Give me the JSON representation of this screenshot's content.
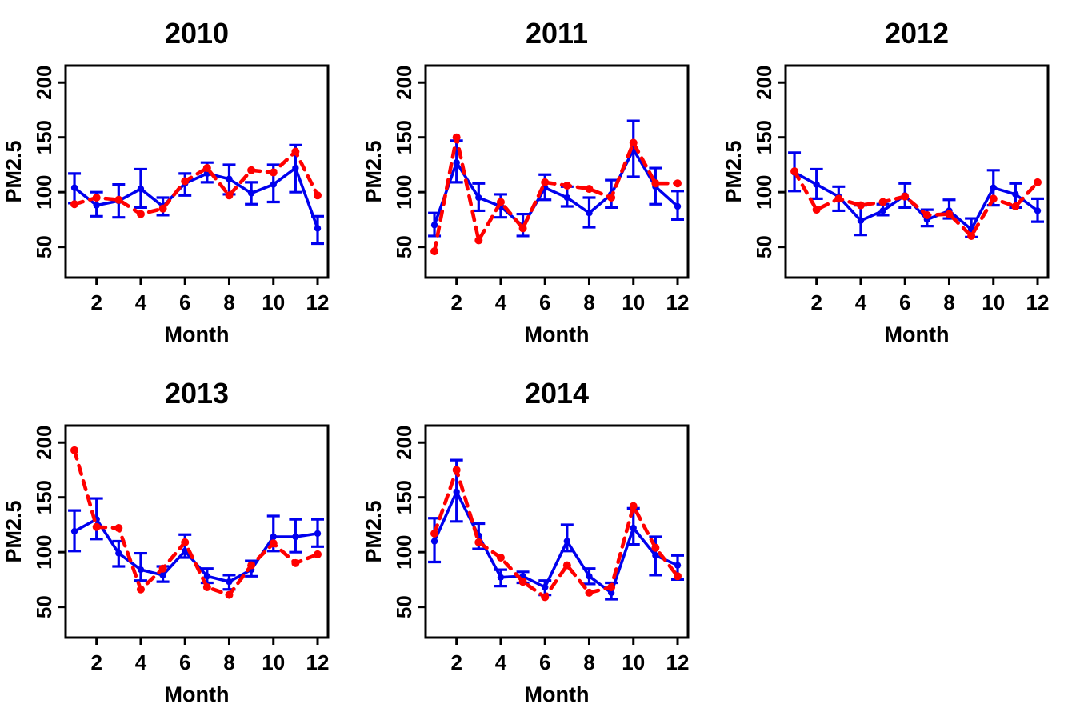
{
  "figure": {
    "description_colors": {
      "blue_series": "#0000EE",
      "red_series": "#FF0000",
      "axis": "#000000",
      "background": "#FFFFFF"
    }
  },
  "chart_data": [
    {
      "type": "line",
      "title": "2010",
      "xlabel": "Month",
      "ylabel": "PM2.5",
      "x": [
        1,
        2,
        3,
        4,
        5,
        6,
        7,
        8,
        9,
        10,
        11,
        12
      ],
      "xticks": [
        2,
        4,
        6,
        8,
        10,
        12
      ],
      "yticks": [
        50,
        100,
        150,
        200
      ],
      "xlim": [
        0.6,
        12.47
      ],
      "ylim": [
        22,
        215.5
      ],
      "grid": false,
      "legend": "none",
      "series": [
        {
          "name": "solid_blue_with_errorbars",
          "color": "#0000EE",
          "line": "solid",
          "values": [
            104,
            88,
            92,
            103,
            87,
            108,
            117,
            112,
            99,
            107,
            122,
            67
          ],
          "err_high": [
            117,
            100,
            107,
            121,
            95,
            117,
            127,
            125,
            109,
            125,
            143,
            78
          ],
          "err_low": [
            90,
            78,
            77,
            86,
            79,
            97,
            109,
            98,
            89,
            91,
            100,
            53
          ]
        },
        {
          "name": "dashed_red",
          "color": "#FF0000",
          "line": "dashed",
          "values": [
            89,
            95,
            93,
            80,
            85,
            110,
            122,
            97,
            120,
            118,
            137,
            97
          ]
        }
      ]
    },
    {
      "type": "line",
      "title": "2011",
      "xlabel": "Month",
      "ylabel": "PM2.5",
      "x": [
        1,
        2,
        3,
        4,
        5,
        6,
        7,
        8,
        9,
        10,
        11,
        12
      ],
      "xticks": [
        2,
        4,
        6,
        8,
        10,
        12
      ],
      "yticks": [
        50,
        100,
        150,
        200
      ],
      "xlim": [
        0.6,
        12.47
      ],
      "ylim": [
        22,
        215.5
      ],
      "grid": false,
      "legend": "none",
      "series": [
        {
          "name": "solid_blue_with_errorbars",
          "color": "#0000EE",
          "line": "solid",
          "values": [
            70,
            127,
            95,
            87,
            69,
            104,
            95,
            81,
            98,
            139,
            105,
            87
          ],
          "err_high": [
            81,
            147,
            108,
            98,
            80,
            116,
            105,
            95,
            111,
            165,
            122,
            101
          ],
          "err_low": [
            60,
            109,
            83,
            77,
            60,
            93,
            87,
            68,
            86,
            114,
            89,
            75
          ]
        },
        {
          "name": "dashed_red",
          "color": "#FF0000",
          "line": "dashed",
          "values": [
            46,
            150,
            56,
            91,
            67,
            109,
            106,
            103,
            95,
            145,
            108,
            108
          ]
        }
      ]
    },
    {
      "type": "line",
      "title": "2012",
      "xlabel": "Month",
      "ylabel": "PM2.5",
      "x": [
        1,
        2,
        3,
        4,
        5,
        6,
        7,
        8,
        9,
        10,
        11,
        12
      ],
      "xticks": [
        2,
        4,
        6,
        8,
        10,
        12
      ],
      "yticks": [
        50,
        100,
        150,
        200
      ],
      "xlim": [
        0.6,
        12.47
      ],
      "ylim": [
        22,
        215.5
      ],
      "grid": false,
      "legend": "none",
      "series": [
        {
          "name": "solid_blue_with_errorbars",
          "color": "#0000EE",
          "line": "solid",
          "values": [
            118,
            107,
            96,
            74,
            83,
            97,
            75,
            83,
            66,
            104,
            98,
            83
          ],
          "err_high": [
            136,
            121,
            105,
            88,
            89,
            108,
            84,
            93,
            76,
            120,
            108,
            94
          ],
          "err_low": [
            101,
            94,
            83,
            61,
            79,
            86,
            69,
            76,
            59,
            88,
            86,
            73
          ]
        },
        {
          "name": "dashed_red",
          "color": "#FF0000",
          "line": "dashed",
          "values": [
            119,
            84,
            94,
            88,
            91,
            96,
            79,
            80,
            60,
            94,
            87,
            109
          ]
        }
      ]
    },
    {
      "type": "line",
      "title": "2013",
      "xlabel": "Month",
      "ylabel": "PM2.5",
      "x": [
        1,
        2,
        3,
        4,
        5,
        6,
        7,
        8,
        9,
        10,
        11,
        12
      ],
      "xticks": [
        2,
        4,
        6,
        8,
        10,
        12
      ],
      "yticks": [
        50,
        100,
        150,
        200
      ],
      "xlim": [
        0.6,
        12.47
      ],
      "ylim": [
        22,
        215.5
      ],
      "grid": false,
      "legend": "none",
      "series": [
        {
          "name": "solid_blue_with_errorbars",
          "color": "#0000EE",
          "line": "solid",
          "values": [
            119,
            130,
            99,
            84,
            79,
            101,
            78,
            73,
            84,
            114,
            114,
            117
          ],
          "err_high": [
            138,
            149,
            110,
            99,
            87,
            116,
            85,
            79,
            92,
            133,
            130,
            130
          ],
          "err_low": [
            101,
            112,
            87,
            74,
            73,
            95,
            72,
            66,
            78,
            101,
            100,
            105
          ]
        },
        {
          "name": "dashed_red",
          "color": "#FF0000",
          "line": "dashed",
          "values": [
            193,
            123,
            122,
            66,
            85,
            109,
            68,
            61,
            88,
            108,
            90,
            98
          ]
        }
      ]
    },
    {
      "type": "line",
      "title": "2014",
      "xlabel": "Month",
      "ylabel": "PM2.5",
      "x": [
        1,
        2,
        3,
        4,
        5,
        6,
        7,
        8,
        9,
        10,
        11,
        12
      ],
      "xticks": [
        2,
        4,
        6,
        8,
        10,
        12
      ],
      "yticks": [
        50,
        100,
        150,
        200
      ],
      "xlim": [
        0.6,
        12.47
      ],
      "ylim": [
        22,
        215.5
      ],
      "grid": false,
      "legend": "none",
      "series": [
        {
          "name": "solid_blue_with_errorbars",
          "color": "#0000EE",
          "line": "solid",
          "values": [
            110,
            155,
            115,
            77,
            78,
            68,
            110,
            78,
            63,
            122,
            97,
            88
          ],
          "err_high": [
            131,
            184,
            126,
            84,
            82,
            74,
            125,
            85,
            72,
            140,
            114,
            97
          ],
          "err_low": [
            91,
            128,
            103,
            69,
            72,
            61,
            101,
            71,
            57,
            107,
            79,
            75
          ]
        },
        {
          "name": "dashed_red",
          "color": "#FF0000",
          "line": "dashed",
          "values": [
            117,
            175,
            109,
            95,
            73,
            59,
            88,
            63,
            68,
            142,
            104,
            78
          ]
        }
      ]
    }
  ]
}
